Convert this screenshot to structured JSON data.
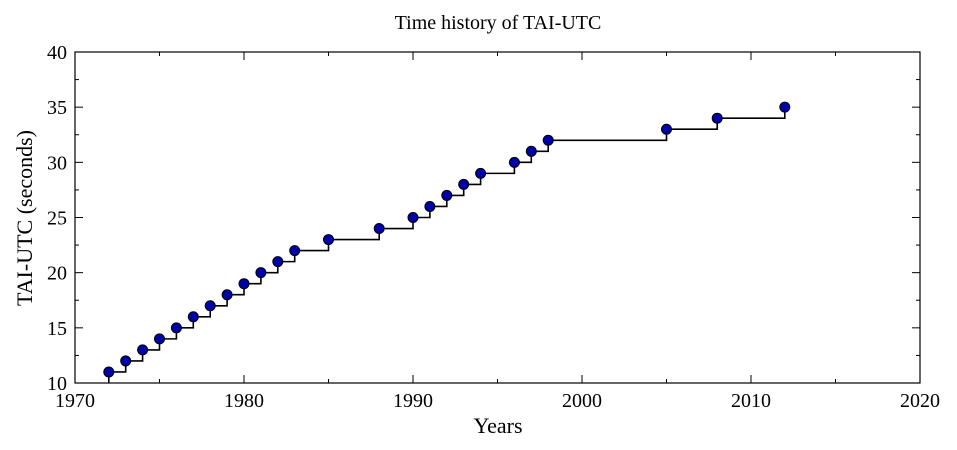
{
  "chart_data": {
    "type": "line",
    "title": "Time history of TAI-UTC",
    "xlabel": "Years",
    "ylabel": "TAI-UTC (seconds)",
    "xlim": [
      1970,
      2020
    ],
    "ylim": [
      10,
      40
    ],
    "x_ticks": [
      "1970",
      "1980",
      "1990",
      "2000",
      "2010",
      "2020"
    ],
    "y_ticks": [
      "10",
      "15",
      "20",
      "25",
      "30",
      "35",
      "40"
    ],
    "grid": false,
    "legend": "none",
    "step": true,
    "marker_color": "#0000a8",
    "line_color": "#000000",
    "series": [
      {
        "points": [
          [
            1972,
            11
          ],
          [
            1973,
            12
          ],
          [
            1974,
            13
          ],
          [
            1975,
            14
          ],
          [
            1976,
            15
          ],
          [
            1977,
            16
          ],
          [
            1978,
            17
          ],
          [
            1979,
            18
          ],
          [
            1980,
            19
          ],
          [
            1981,
            20
          ],
          [
            1982,
            21
          ],
          [
            1983,
            22
          ],
          [
            1985,
            23
          ],
          [
            1988,
            24
          ],
          [
            1990,
            25
          ],
          [
            1991,
            26
          ],
          [
            1992,
            27
          ],
          [
            1993,
            28
          ],
          [
            1994,
            29
          ],
          [
            1996,
            30
          ],
          [
            1997,
            31
          ],
          [
            1998,
            32
          ],
          [
            2005,
            33
          ],
          [
            2008,
            34
          ],
          [
            2012,
            35
          ]
        ]
      }
    ]
  }
}
